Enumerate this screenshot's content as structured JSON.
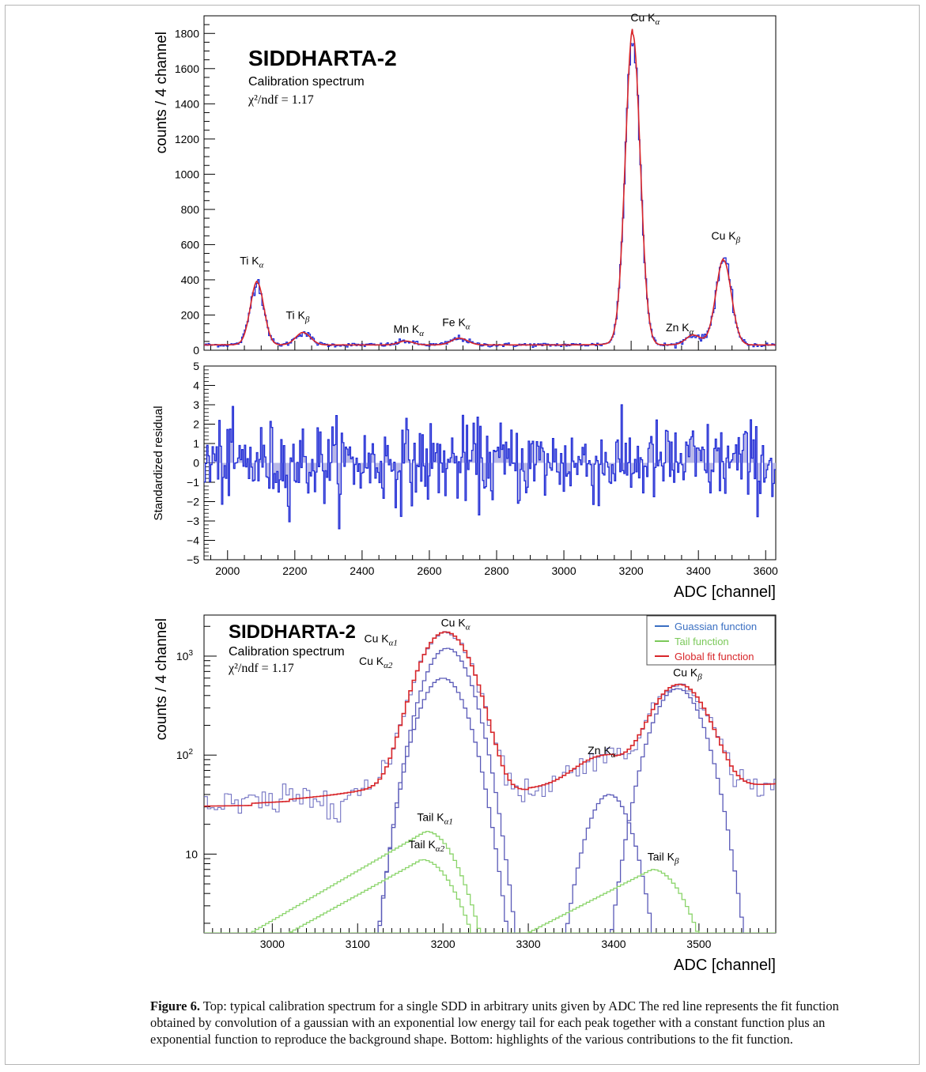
{
  "caption": {
    "label": "Figure 6.",
    "text": " Top: typical calibration spectrum for a single SDD in arbitrary units given by ADC The red line represents the fit function obtained by convolution of a gaussian with an exponential low energy tail for each peak together with a constant function plus an exponential function to reproduce the background shape. Bottom: highlights of the various contributions to the fit function."
  },
  "colors": {
    "data": "#1f2bd6",
    "fit": "#d8262a",
    "gauss": "#5a5ab8",
    "tail": "#8ad46a",
    "residual_fill": "#b8b8e8",
    "legend_gauss_text": "#3a6fc2",
    "legend_tail_text": "#7bc95a",
    "legend_fit_text": "#d8262a"
  },
  "chart_data": [
    {
      "type": "line",
      "title": "SIDDHARTA-2",
      "subtitle": "Calibration spectrum",
      "chi2": "χ²/ndf = 1.17",
      "xlabel": "",
      "ylabel": "counts / 4 channel",
      "xlim": [
        1930,
        3630
      ],
      "ylim": [
        0,
        1900
      ],
      "yticks": [
        0,
        200,
        400,
        600,
        800,
        1000,
        1200,
        1400,
        1600,
        1800
      ],
      "background": 30,
      "peaks": [
        {
          "center": 2088,
          "height": 355,
          "sigma": 20
        },
        {
          "center": 2225,
          "height": 70,
          "sigma": 22
        },
        {
          "center": 2530,
          "height": 22,
          "sigma": 22
        },
        {
          "center": 2690,
          "height": 38,
          "sigma": 24
        },
        {
          "center": 3205,
          "height": 1765,
          "sigma": 22
        },
        {
          "center": 3385,
          "height": 55,
          "sigma": 22
        },
        {
          "center": 3475,
          "height": 480,
          "sigma": 23
        }
      ],
      "annotations": [
        {
          "text": "Ti K",
          "sub": "α",
          "x": 2088,
          "y": 470
        },
        {
          "text": "Ti K",
          "sub": "β",
          "x": 2225,
          "y": 160
        },
        {
          "text": "Mn K",
          "sub": "α",
          "x": 2545,
          "y": 80
        },
        {
          "text": "Fe K",
          "sub": "α",
          "x": 2690,
          "y": 120
        },
        {
          "text": "Cu K",
          "sub": "α",
          "x": 3250,
          "y": 1850
        },
        {
          "text": "Zn K",
          "sub": "α",
          "x": 3355,
          "y": 90
        },
        {
          "text": "Cu K",
          "sub": "β",
          "x": 3490,
          "y": 610
        }
      ],
      "series": [
        {
          "name": "",
          "role": "data"
        },
        {
          "name": "",
          "role": "fit"
        }
      ]
    },
    {
      "type": "bar",
      "title": "",
      "xlabel": "ADC [channel]",
      "ylabel": "Standardized residual",
      "xlim": [
        1930,
        3630
      ],
      "ylim": [
        -5,
        5
      ],
      "xticks": [
        2000,
        2200,
        2400,
        2600,
        2800,
        3000,
        3200,
        3400,
        3600
      ],
      "yticks": [
        -5,
        -4,
        -3,
        -2,
        -1,
        0,
        1,
        2,
        3,
        4,
        5
      ]
    },
    {
      "type": "line",
      "title": "SIDDHARTA-2",
      "subtitle": "Calibration spectrum",
      "chi2": "χ²/ndf = 1.17",
      "xlabel": "ADC [channel]",
      "ylabel": "counts / 4 channel",
      "yscale": "log",
      "xlim": [
        2920,
        3590
      ],
      "ylim": [
        1.6,
        2600
      ],
      "xticks": [
        3000,
        3100,
        3200,
        3300,
        3400,
        3500
      ],
      "yticks": [
        {
          "value": 10,
          "label": "10"
        },
        {
          "value": 100,
          "label": "10²"
        },
        {
          "value": 1000,
          "label": "10³"
        }
      ],
      "legend": {
        "placement": "top-right",
        "entries": [
          "Guassian function",
          "Tail function",
          "Global fit function"
        ]
      },
      "annotations": [
        {
          "text": "Cu K",
          "sub": "α",
          "x": 3218,
          "y": 1850,
          "color": "black"
        },
        {
          "text": "Cu K",
          "sub": "α1",
          "x": 3128,
          "y": 1280,
          "color": "blue"
        },
        {
          "text": "Cu K",
          "sub": "α2",
          "x": 3122,
          "y": 760,
          "color": "blue"
        },
        {
          "text": "Zn K",
          "sub": "α",
          "x": 3390,
          "y": 95,
          "color": "black"
        },
        {
          "text": "Cu K",
          "sub": "β",
          "x": 3490,
          "y": 580,
          "color": "black"
        },
        {
          "text": "Tail K",
          "sub": "α1",
          "x": 3190,
          "y": 20,
          "color": "green"
        },
        {
          "text": "Tail K",
          "sub": "α2",
          "x": 3180,
          "y": 10.6,
          "color": "green"
        },
        {
          "text": "Tail K",
          "sub": "β",
          "x": 3460,
          "y": 8,
          "color": "green"
        }
      ],
      "series": [
        {
          "name": "Guassian function",
          "role": "gauss",
          "curves": [
            {
              "center": 3205,
              "height": 1200,
              "sigma": 22
            },
            {
              "center": 3200,
              "height": 600,
              "sigma": 22
            },
            {
              "center": 3395,
              "height": 40,
              "sigma": 20
            },
            {
              "center": 3475,
              "height": 470,
              "sigma": 23
            }
          ]
        },
        {
          "name": "Tail function",
          "role": "tail",
          "curves": [
            {
              "start": 2975,
              "peak": 3180,
              "end": 3245,
              "height": 17
            },
            {
              "start": 3020,
              "peak": 3175,
              "end": 3235,
              "height": 8.8
            },
            {
              "start": 3300,
              "peak": 3445,
              "end": 3500,
              "height": 7
            }
          ]
        },
        {
          "name": "Global fit function",
          "role": "fit"
        }
      ]
    }
  ]
}
